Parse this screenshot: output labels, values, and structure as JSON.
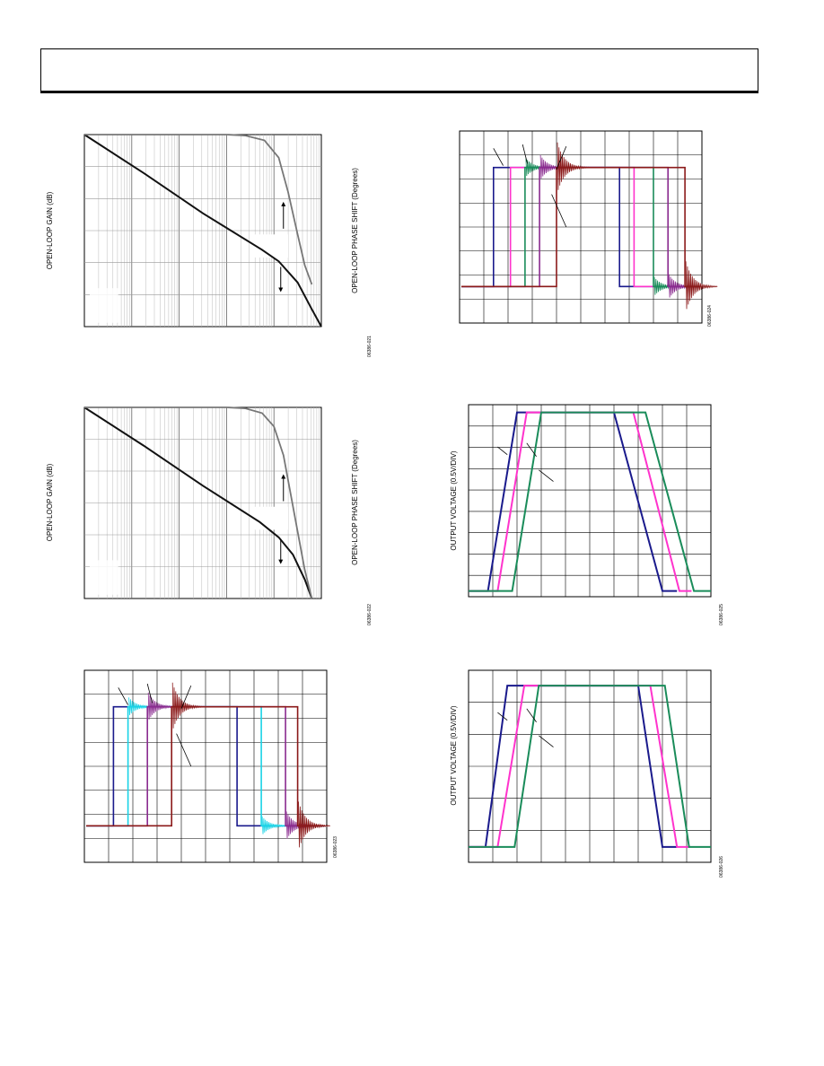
{
  "chart_data": [
    {
      "id": "fig-021",
      "type": "line",
      "xscale": "log",
      "ylabel": "OPEN-LOOP GAIN (dB)",
      "ylabel_right": "OPEN-LOOP PHASE SHIFT (Degrees)",
      "figure_code": "06386-021",
      "series": [
        {
          "color": "#111111",
          "x": [
            0,
            0.25,
            0.5,
            0.75,
            0.82,
            0.9,
            0.96,
            1.0
          ],
          "y": [
            0,
            0.2,
            0.41,
            0.6,
            0.66,
            0.77,
            0.91,
            1.0
          ]
        },
        {
          "color": "#777777",
          "x": [
            0,
            0.4,
            0.6,
            0.68,
            0.76,
            0.82,
            0.86,
            0.9,
            0.93,
            0.96
          ],
          "y": [
            0.0,
            0.0,
            0.0,
            0.005,
            0.03,
            0.12,
            0.3,
            0.52,
            0.68,
            0.78
          ]
        }
      ],
      "arrows": [
        "up",
        "down"
      ]
    },
    {
      "id": "fig-022",
      "type": "line",
      "xscale": "log",
      "ylabel": "OPEN-LOOP GAIN (dB)",
      "ylabel_right": "OPEN-LOOP PHASE SHIFT (Degrees)",
      "figure_code": "06386-022",
      "series": [
        {
          "color": "#111111",
          "x": [
            0,
            0.25,
            0.5,
            0.74,
            0.82,
            0.88,
            0.93,
            0.96
          ],
          "y": [
            0,
            0.2,
            0.41,
            0.6,
            0.68,
            0.77,
            0.9,
            1.0
          ]
        },
        {
          "color": "#777777",
          "x": [
            0,
            0.4,
            0.6,
            0.68,
            0.75,
            0.8,
            0.84,
            0.87,
            0.9,
            0.93,
            0.96
          ],
          "y": [
            0.0,
            0.0,
            0.0,
            0.005,
            0.03,
            0.1,
            0.25,
            0.45,
            0.65,
            0.85,
            1.0
          ]
        }
      ],
      "arrows": [
        "up",
        "down"
      ]
    },
    {
      "id": "fig-023",
      "type": "line",
      "figure_code": "06386-023",
      "series": [
        {
          "color": "#1a1a8c",
          "pulse": [
            0.12,
            0.63
          ],
          "ring": 0
        },
        {
          "color": "#19d3e6",
          "pulse": [
            0.18,
            0.73
          ],
          "ring": 0.2
        },
        {
          "color": "#8a2b8f",
          "pulse": [
            0.26,
            0.83
          ],
          "ring": 0.45
        },
        {
          "color": "#8b1a1a",
          "pulse": [
            0.36,
            0.88
          ],
          "ring": 0.95
        }
      ]
    },
    {
      "id": "fig-024",
      "type": "line",
      "figure_code": "06386-024",
      "series": [
        {
          "color": "#1a1a8c",
          "pulse": [
            0.14,
            0.66
          ],
          "ring": 0
        },
        {
          "color": "#ff33cc",
          "pulse": [
            0.21,
            0.72
          ],
          "ring": 0
        },
        {
          "color": "#1a8c5a",
          "pulse": [
            0.27,
            0.8
          ],
          "ring": 0.2
        },
        {
          "color": "#8a2b8f",
          "pulse": [
            0.33,
            0.86
          ],
          "ring": 0.35
        },
        {
          "color": "#8b1a1a",
          "pulse": [
            0.4,
            0.93
          ],
          "ring": 1.0
        }
      ]
    },
    {
      "id": "fig-025",
      "type": "line",
      "ylabel": "OUTPUT VOLTAGE (0.5V/DIV)",
      "figure_code": "06386-025",
      "series": [
        {
          "color": "#1a1a8c",
          "x": [
            0.0,
            0.08,
            0.2,
            0.6,
            0.8,
            0.86
          ],
          "y": [
            0.97,
            0.97,
            0.04,
            0.04,
            0.97,
            0.97
          ]
        },
        {
          "color": "#ff33cc",
          "x": [
            0.0,
            0.12,
            0.24,
            0.68,
            0.87,
            0.92
          ],
          "y": [
            0.97,
            0.97,
            0.04,
            0.04,
            0.97,
            0.97
          ]
        },
        {
          "color": "#1a8c5a",
          "x": [
            0.0,
            0.18,
            0.3,
            0.73,
            0.93,
            1.0
          ],
          "y": [
            0.97,
            0.97,
            0.04,
            0.04,
            0.97,
            0.97
          ]
        }
      ]
    },
    {
      "id": "fig-026",
      "type": "line",
      "ylabel": "OUTPUT VOLTAGE (0.5V/DIV)",
      "figure_code": "06386-026",
      "series": [
        {
          "color": "#1a1a8c",
          "x": [
            0.0,
            0.07,
            0.16,
            0.7,
            0.8,
            0.86
          ],
          "y": [
            0.92,
            0.92,
            0.08,
            0.08,
            0.92,
            0.92
          ]
        },
        {
          "color": "#ff33cc",
          "x": [
            0.0,
            0.12,
            0.23,
            0.75,
            0.86,
            0.91
          ],
          "y": [
            0.92,
            0.92,
            0.08,
            0.08,
            0.92,
            0.92
          ]
        },
        {
          "color": "#1a8c5a",
          "x": [
            0.0,
            0.19,
            0.29,
            0.81,
            0.91,
            1.0
          ],
          "y": [
            0.92,
            0.92,
            0.08,
            0.08,
            0.92,
            0.92
          ]
        }
      ]
    }
  ]
}
